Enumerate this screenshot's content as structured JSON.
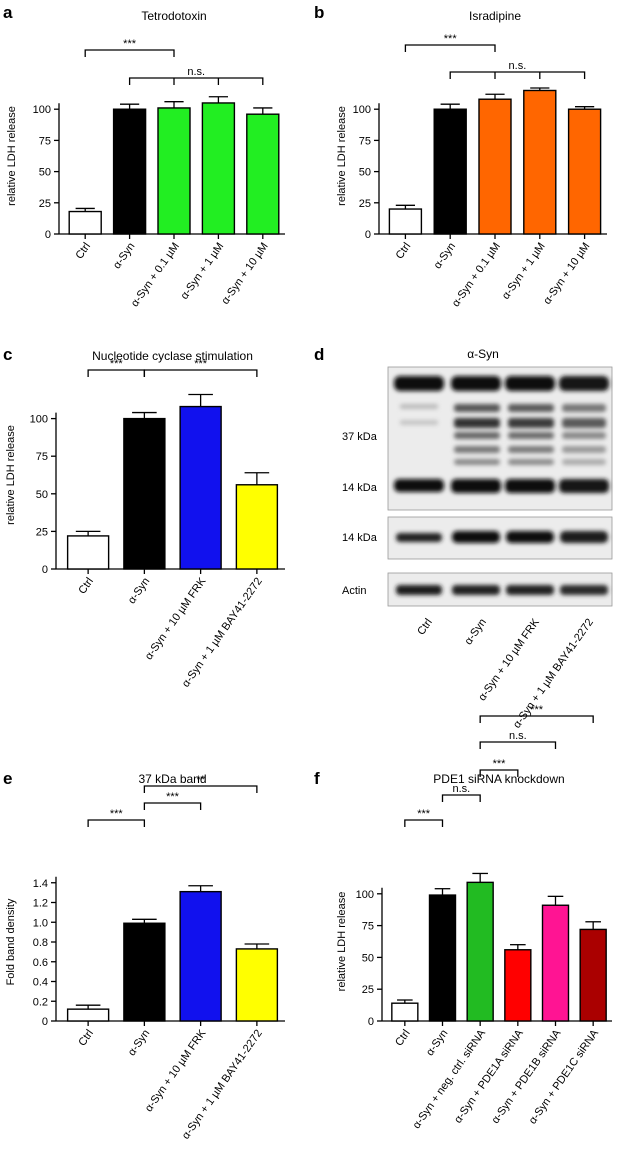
{
  "chart_data": [
    {
      "panel": "a",
      "type": "bar",
      "title": "Tetrodotoxin",
      "ylabel": "relative LDH release",
      "ylim": [
        0,
        125
      ],
      "yticks": [
        0,
        25,
        50,
        75,
        100
      ],
      "categories": [
        "Ctrl",
        "α-Syn",
        "α-Syn + 0.1 µM",
        "α-Syn + 1 µM",
        "α-Syn + 10 µM"
      ],
      "values": [
        18,
        100,
        101,
        105,
        96
      ],
      "errors": [
        2.5,
        4,
        5,
        5,
        5
      ],
      "colors": [
        "#ffffff",
        "#000000",
        "#22ee22",
        "#22ee22",
        "#22ee22"
      ],
      "significance": [
        {
          "from": 0,
          "to": 2,
          "label": "***",
          "level": 0
        },
        {
          "from": 1,
          "to": 4,
          "label": "n.s.",
          "level": 1,
          "ticks": [
            2,
            3
          ]
        }
      ]
    },
    {
      "panel": "b",
      "type": "bar",
      "title": "Isradipine",
      "ylabel": "relative LDH release",
      "ylim": [
        0,
        125
      ],
      "yticks": [
        0,
        25,
        50,
        75,
        100
      ],
      "categories": [
        "Ctrl",
        "α-Syn",
        "α-Syn + 0.1 µM",
        "α-Syn + 1 µM",
        "α-Syn + 10 µM"
      ],
      "values": [
        20,
        100,
        108,
        115,
        100
      ],
      "errors": [
        3,
        4,
        4,
        2,
        2
      ],
      "colors": [
        "#ffffff",
        "#000000",
        "#ff6600",
        "#ff6600",
        "#ff6600"
      ],
      "significance": [
        {
          "from": 0,
          "to": 2,
          "label": "***",
          "level": 0
        },
        {
          "from": 1,
          "to": 4,
          "label": "n.s.",
          "level": 1,
          "ticks": [
            2,
            3
          ]
        }
      ]
    },
    {
      "panel": "c",
      "type": "bar",
      "title": "Nucleotide cyclase stimulation",
      "ylabel": "relative LDH release",
      "ylim": [
        0,
        125
      ],
      "yticks": [
        0,
        25,
        50,
        75,
        100
      ],
      "categories": [
        "Ctrl",
        "α-Syn",
        "α-Syn + 10 µM FRK",
        "α-Syn + 1 µM BAY41-2272"
      ],
      "values": [
        22,
        100,
        108,
        56
      ],
      "errors": [
        3,
        4,
        8,
        8
      ],
      "colors": [
        "#ffffff",
        "#000000",
        "#1111ee",
        "#ffff00"
      ],
      "significance": [
        {
          "from": 0,
          "to": 1,
          "label": "***",
          "level": 0
        },
        {
          "from": 1,
          "to": 3,
          "label": "***",
          "level": 0
        }
      ]
    },
    {
      "panel": "e",
      "type": "bar",
      "title": "37 kDa band",
      "ylabel": "Fold band density",
      "ylim": [
        0,
        1.6
      ],
      "yticks": [
        0,
        0.2,
        0.4,
        0.6,
        0.8,
        1.0,
        1.2,
        1.4
      ],
      "yticklabels": [
        "0",
        "0.2",
        "0.4",
        "0.6",
        "0.8",
        "1.0",
        "1.2",
        "1.4"
      ],
      "categories": [
        "Ctrl",
        "α-Syn",
        "α-Syn + 10 µM FRK",
        "α-Syn + 1 µM BAY41-2272"
      ],
      "values": [
        0.12,
        0.99,
        1.31,
        0.73
      ],
      "errors": [
        0.04,
        0.04,
        0.06,
        0.05
      ],
      "colors": [
        "#ffffff",
        "#000000",
        "#1111ee",
        "#ffff00"
      ],
      "significance": [
        {
          "from": 0,
          "to": 1,
          "label": "***",
          "level": 0
        },
        {
          "from": 1,
          "to": 2,
          "label": "***",
          "level": 1
        },
        {
          "from": 1,
          "to": 3,
          "label": "**",
          "level": 2
        }
      ]
    },
    {
      "panel": "f",
      "type": "bar",
      "title": "PDE1 siRNA knockdown",
      "ylabel": "relative LDH release",
      "ylim": [
        0,
        125
      ],
      "yticks": [
        0,
        25,
        50,
        75,
        100
      ],
      "categories": [
        "Ctrl",
        "α-Syn",
        "α-Syn + neg. ctrl. siRNA",
        "α-Syn + PDE1A siRNA",
        "α-Syn + PDE1B siRNA",
        "α-Syn + PDE1C siRNA"
      ],
      "values": [
        14,
        99,
        109,
        56,
        91,
        72
      ],
      "errors": [
        2.5,
        5,
        7,
        4,
        7,
        6
      ],
      "colors": [
        "#ffffff",
        "#000000",
        "#22bb22",
        "#ff0000",
        "#ff1493",
        "#aa0000"
      ],
      "significance": [
        {
          "from": 0,
          "to": 1,
          "label": "***",
          "level": 0
        },
        {
          "from": 1,
          "to": 2,
          "label": "n.s.",
          "level": 1
        },
        {
          "from": 2,
          "to": 3,
          "label": "***",
          "level": 2
        },
        {
          "from": 2,
          "to": 4,
          "label": "n.s.",
          "level": 3
        },
        {
          "from": 2,
          "to": 5,
          "label": "***",
          "level": 4
        }
      ]
    }
  ],
  "blot": {
    "panel": "d",
    "title": "α-Syn",
    "labels": [
      "37 kDa",
      "14 kDa",
      "14 kDa",
      "Actin"
    ],
    "lanes": [
      "Ctrl",
      "α-Syn",
      "α-Syn + 10 µM FRK",
      "α-Syn + 1 µM BAY41-2272"
    ]
  }
}
